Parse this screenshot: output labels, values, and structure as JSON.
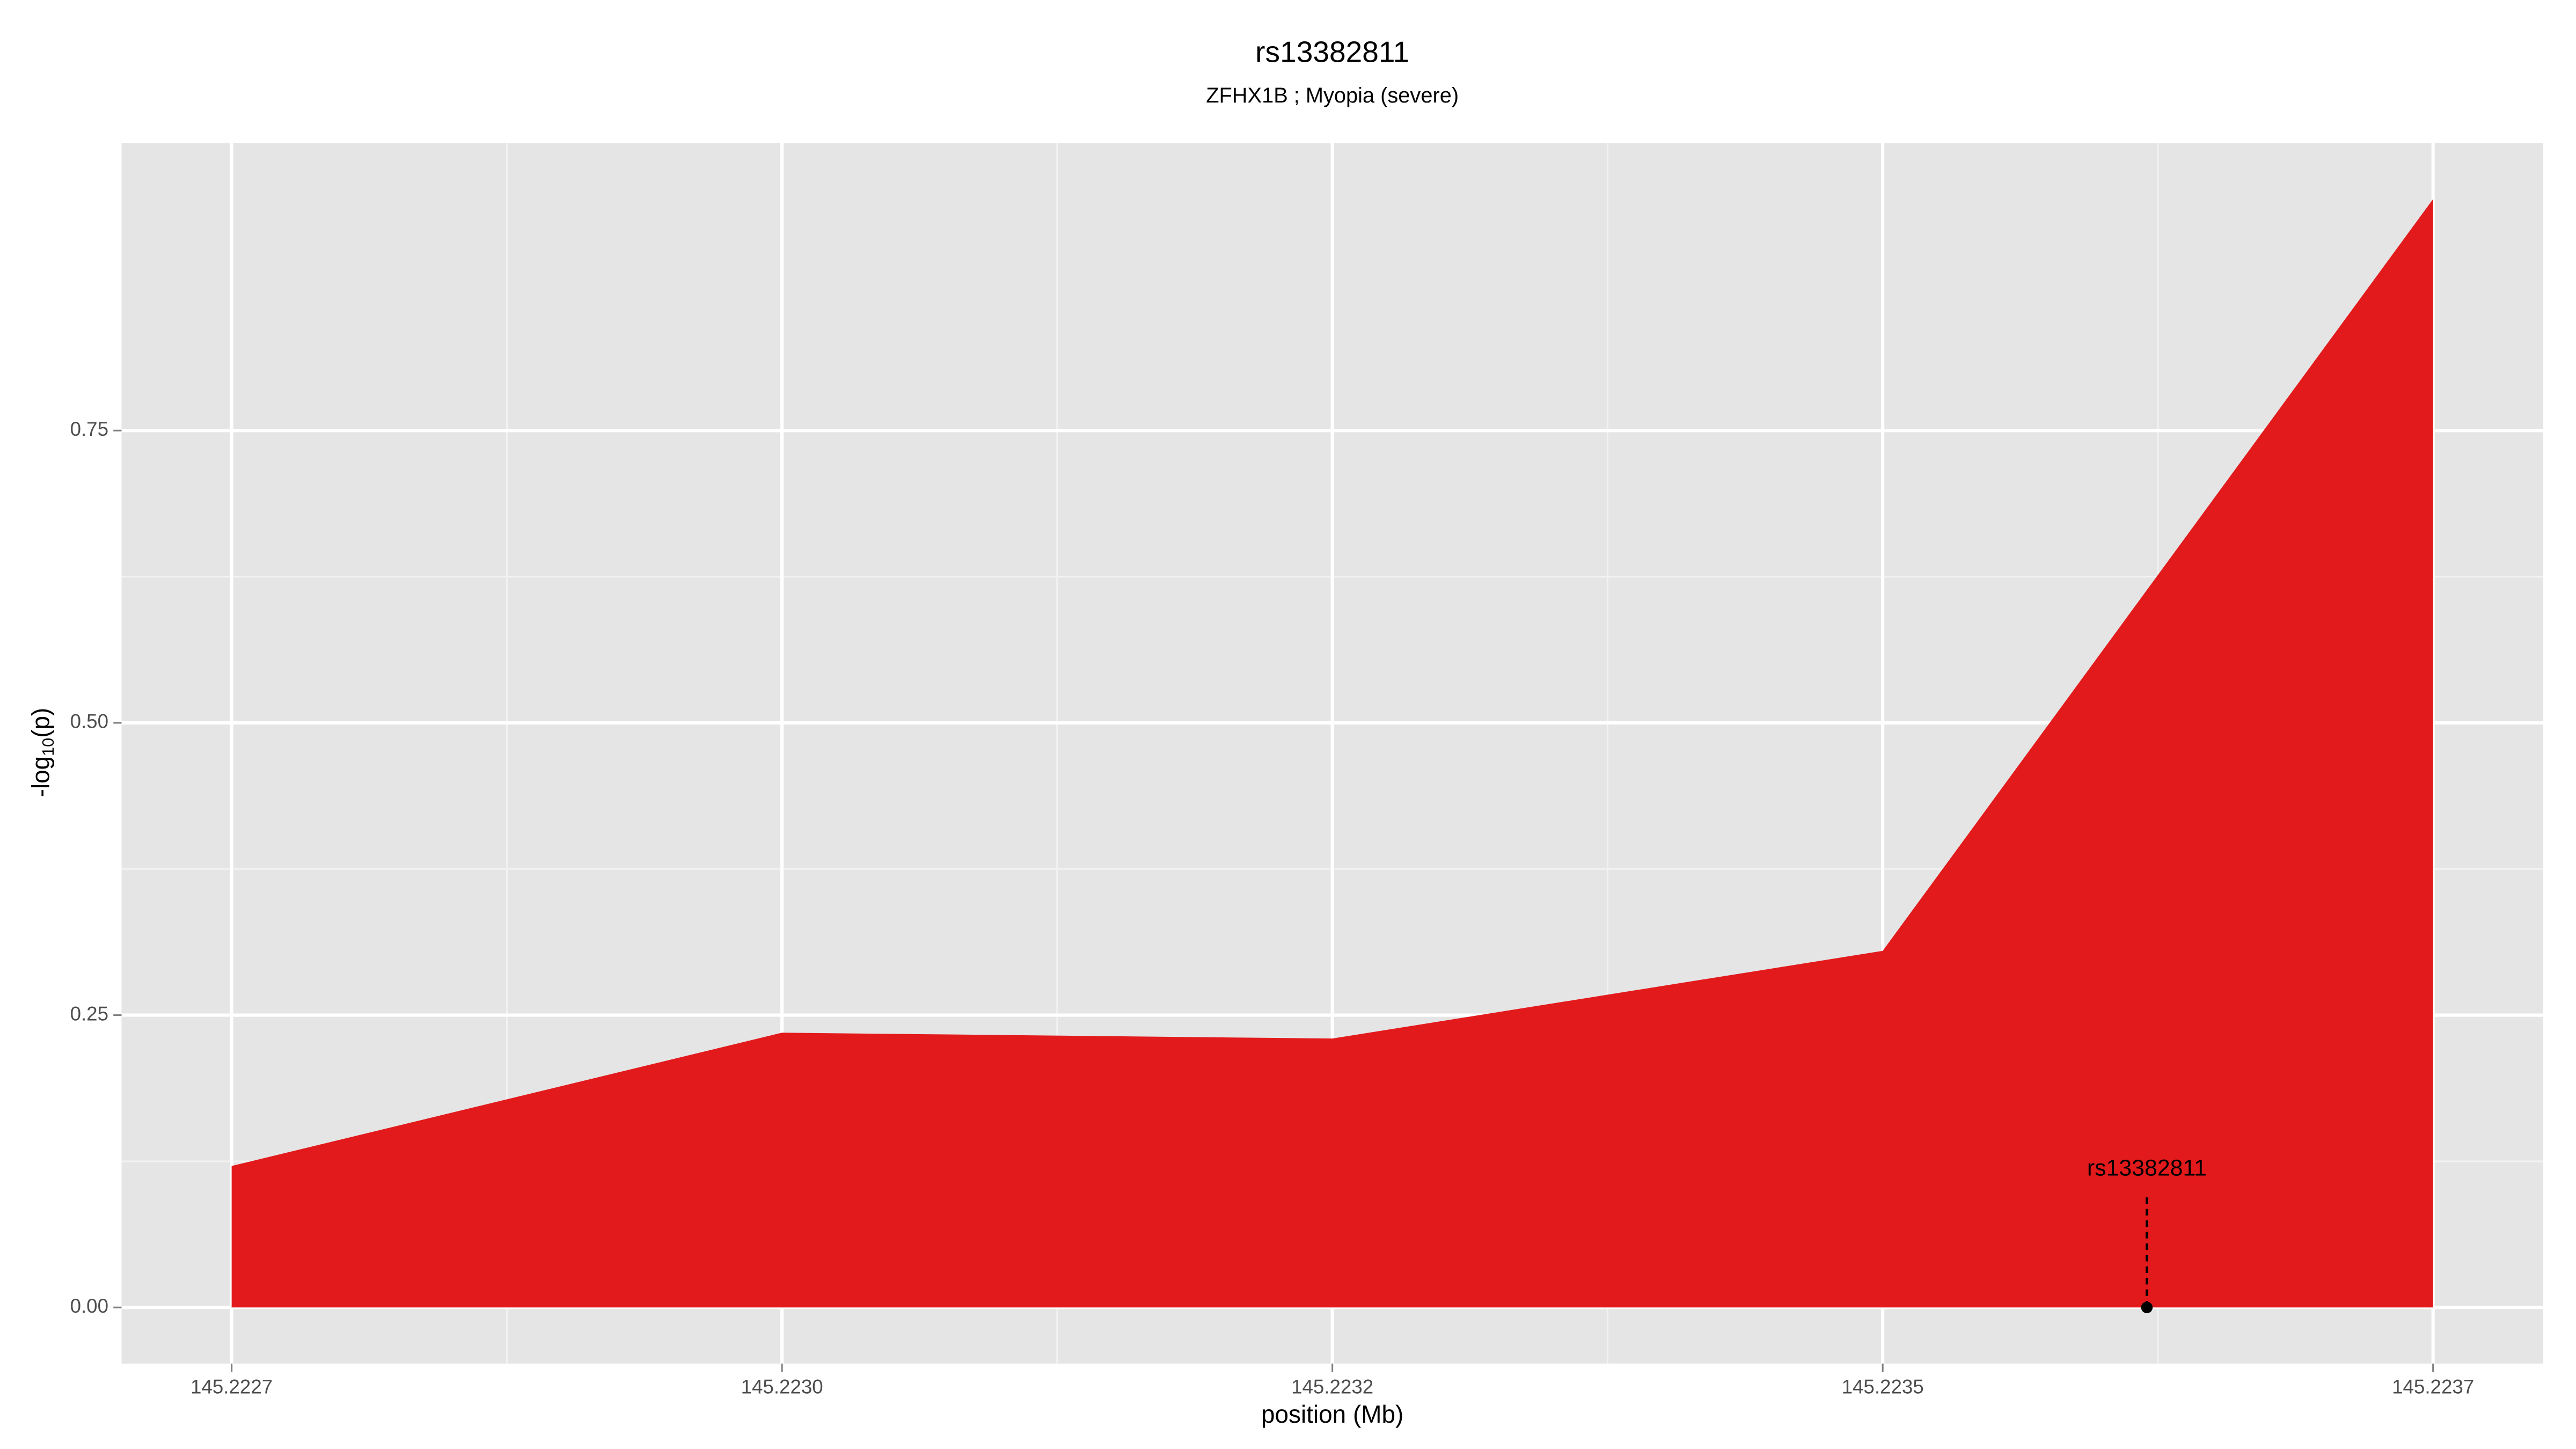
{
  "chart_data": {
    "type": "area",
    "title": "rs13382811",
    "subtitle": "ZFHX1B ; Myopia (severe)",
    "x_label": "position (Mb)",
    "y_label": {
      "prefix": "-log",
      "sub": "10",
      "suffix": "(p)"
    },
    "x": [
      145.2227,
      145.22295,
      145.2232,
      145.22345,
      145.2237
    ],
    "series": [
      {
        "color": "#e31a1c",
        "values": [
          0.121,
          0.235,
          0.23,
          0.305,
          0.948
        ]
      }
    ],
    "xlim": [
      145.22265,
      145.22375
    ],
    "xticks": [
      {
        "value": 145.2227,
        "label": "145.2227"
      },
      {
        "value": 145.22295,
        "label": "145.2230"
      },
      {
        "value": 145.2232,
        "label": "145.2232"
      },
      {
        "value": 145.22345,
        "label": "145.2235"
      },
      {
        "value": 145.2237,
        "label": "145.2237"
      }
    ],
    "ylim": [
      -0.048,
      0.996
    ],
    "yticks": [
      {
        "value": 0,
        "label": "0.00"
      },
      {
        "value": 0.25,
        "label": "0.25"
      },
      {
        "value": 0.5,
        "label": "0.50"
      },
      {
        "value": 0.75,
        "label": "0.75"
      }
    ],
    "grid": true,
    "annotation": {
      "label": "rs13382811",
      "x": 145.22357,
      "y": 0
    }
  }
}
